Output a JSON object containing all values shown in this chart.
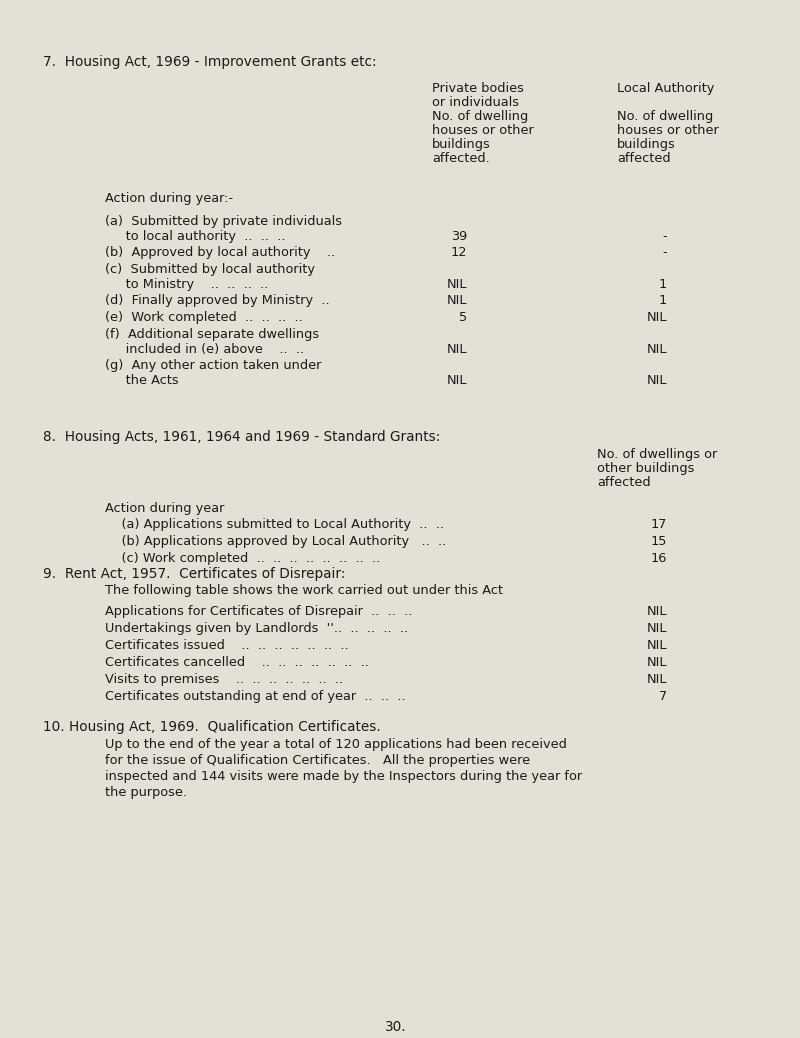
{
  "bg_color": "#e5e0d5",
  "text_color": "#1a1a1a",
  "font_family": "Courier New",
  "page_number": "30.",
  "section7_title": "7.  Housing Act, 1969 - Improvement Grants etc:",
  "section7_col1_header": [
    "Private bodies",
    "or individuals",
    "No. of dwelling",
    "houses or other",
    "buildings",
    "affected."
  ],
  "section7_col2_header": [
    "Local Authority",
    "",
    "No. of dwelling",
    "houses or other",
    "buildings",
    "affected"
  ],
  "section7_action_label": "Action during year:-",
  "section7_rows": [
    {
      "label": "(a)  Submitted by private individuals",
      "label2": "     to local authority  ..  ..  ..",
      "val1": "39",
      "val2": "-"
    },
    {
      "label": "(b)  Approved by local authority    ..",
      "label2": null,
      "val1": "12",
      "val2": "-"
    },
    {
      "label": "(c)  Submitted by local authority",
      "label2": "     to Ministry    ..  ..  ..  ..",
      "val1": "NIL",
      "val2": "1"
    },
    {
      "label": "(d)  Finally approved by Ministry  ..",
      "label2": null,
      "val1": "NIL",
      "val2": "1"
    },
    {
      "label": "(e)  Work completed  ..  ..  ..  ..",
      "label2": null,
      "val1": "5",
      "val2": "NIL"
    },
    {
      "label": "(f)  Additional separate dwellings",
      "label2": "     included in (e) above    ..  ..",
      "val1": "NIL",
      "val2": "NIL"
    },
    {
      "label": "(g)  Any other action taken under",
      "label2": "     the Acts",
      "val1": "NIL",
      "val2": "NIL"
    }
  ],
  "section8_title": "8.  Housing Acts, 1961, 1964 and 1969 - Standard Grants:",
  "section8_col_header": [
    "No. of dwellings or",
    "other buildings",
    "affected"
  ],
  "section8_action_label": "Action during year",
  "section8_rows": [
    {
      "label": "    (a) Applications submitted to Local Authority  ..  ..",
      "val": "17"
    },
    {
      "label": "    (b) Applications approved by Local Authority   ..  ..",
      "val": "15"
    },
    {
      "label": "    (c) Work completed  ..  ..  ..  ..  ..  ..  ..  ..",
      "val": "16"
    }
  ],
  "section9_title": "9.  Rent Act, 1957.  Certificates of Disrepair:",
  "section9_intro": "    The following table shows the work carried out under this Act",
  "section9_rows": [
    {
      "label": "    Applications for Certificates of Disrepair  ..  ..  ..",
      "val": "NIL"
    },
    {
      "label": "    Undertakings given by Landlords  ''..  ..  ..  ..  ..",
      "val": "NIL"
    },
    {
      "label": "    Certificates issued    ..  ..  ..  ..  ..  ..  ..",
      "val": "NIL"
    },
    {
      "label": "    Certificates cancelled    ..  ..  ..  ..  ..  ..  ..",
      "val": "NIL"
    },
    {
      "label": "    Visits to premises    ..  ..  ..  ..  ..  ..  ..",
      "val": "NIL"
    },
    {
      "label": "    Certificates outstanding at end of year  ..  ..  ..",
      "val": "7"
    }
  ],
  "section10_title": "10. Housing Act, 1969.  Qualification Certificates.",
  "section10_body": [
    "    Up to the end of the year a total of 120 applications had been received",
    "    for the issue of Qualification Certificates.   All the properties were",
    "    inspected and 144 visits were made by the Inspectors during the year for",
    "    the purpose."
  ]
}
